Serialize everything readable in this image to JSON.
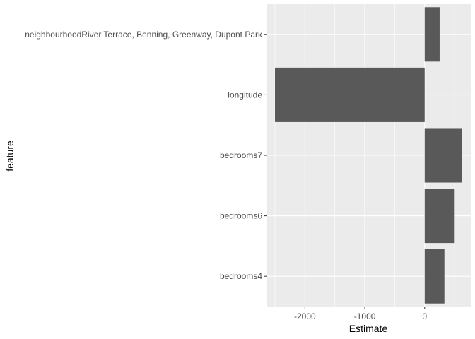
{
  "chart_data": {
    "type": "bar",
    "orientation": "horizontal",
    "title": "",
    "xlabel": "Estimate",
    "ylabel": "feature",
    "categories": [
      "neighbourhoodRiver Terrace, Benning, Greenway, Dupont Park",
      "longitude",
      "bedrooms7",
      "bedrooms6",
      "bedrooms4"
    ],
    "values": [
      250,
      -2500,
      620,
      490,
      330
    ],
    "xlim": [
      -2630,
      770
    ],
    "xticks": [
      -2000,
      -1000,
      0
    ],
    "xtick_labels": [
      "-2000",
      "-1000",
      "0"
    ],
    "grid": true,
    "legend": "none",
    "colors": {
      "panel": "#ebebeb",
      "grid_major": "#ffffff",
      "bar": "#595959",
      "tick_text": "#4d4d4d",
      "tick_mark": "#333333",
      "title_text": "#000000"
    }
  }
}
